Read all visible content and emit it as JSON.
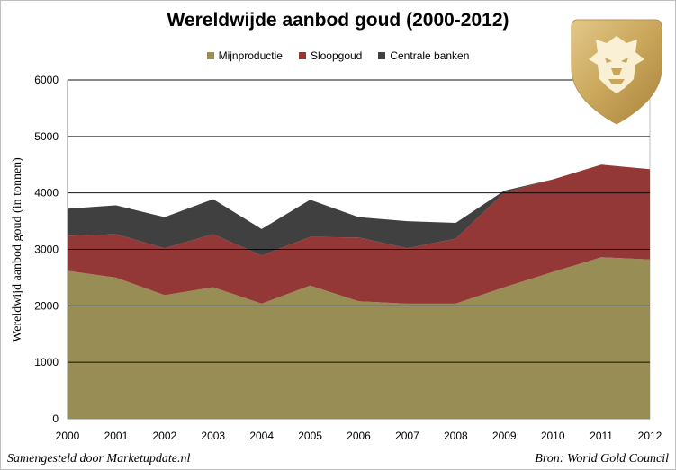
{
  "chart_data": {
    "type": "area",
    "stacked": true,
    "title": "Wereldwijde aanbod goud (2000-2012)",
    "ylabel": "Wereldwijd aanbod goud (in tonnen)",
    "xlabel": "",
    "x": [
      "2000",
      "2001",
      "2002",
      "2003",
      "2004",
      "2005",
      "2006",
      "2007",
      "2008",
      "2009",
      "2010",
      "2011",
      "2012"
    ],
    "ylim": [
      0,
      6000
    ],
    "yticks": [
      "0",
      "1000",
      "2000",
      "3000",
      "4000",
      "5000",
      "6000"
    ],
    "grid": true,
    "legend": "top-center",
    "series": [
      {
        "name": "Mijnproductie",
        "color": "#978d55",
        "values": [
          2620,
          2500,
          2190,
          2330,
          2040,
          2360,
          2080,
          2040,
          2040,
          2330,
          2600,
          2860,
          2820
        ]
      },
      {
        "name": "Sloopgoud",
        "color": "#943737",
        "values": [
          620,
          770,
          830,
          940,
          850,
          860,
          1130,
          980,
          1150,
          1680,
          1640,
          1640,
          1600
        ]
      },
      {
        "name": "Centrale banken",
        "color": "#404040",
        "values": [
          480,
          510,
          550,
          620,
          470,
          660,
          360,
          480,
          280,
          30,
          0,
          0,
          0
        ]
      }
    ]
  },
  "footer": {
    "left": "Samengesteld door Marketupdate.nl",
    "right": "Bron: World Gold Council"
  },
  "logo": {
    "icon": "lion-head-icon",
    "color": "#c9a65a"
  }
}
